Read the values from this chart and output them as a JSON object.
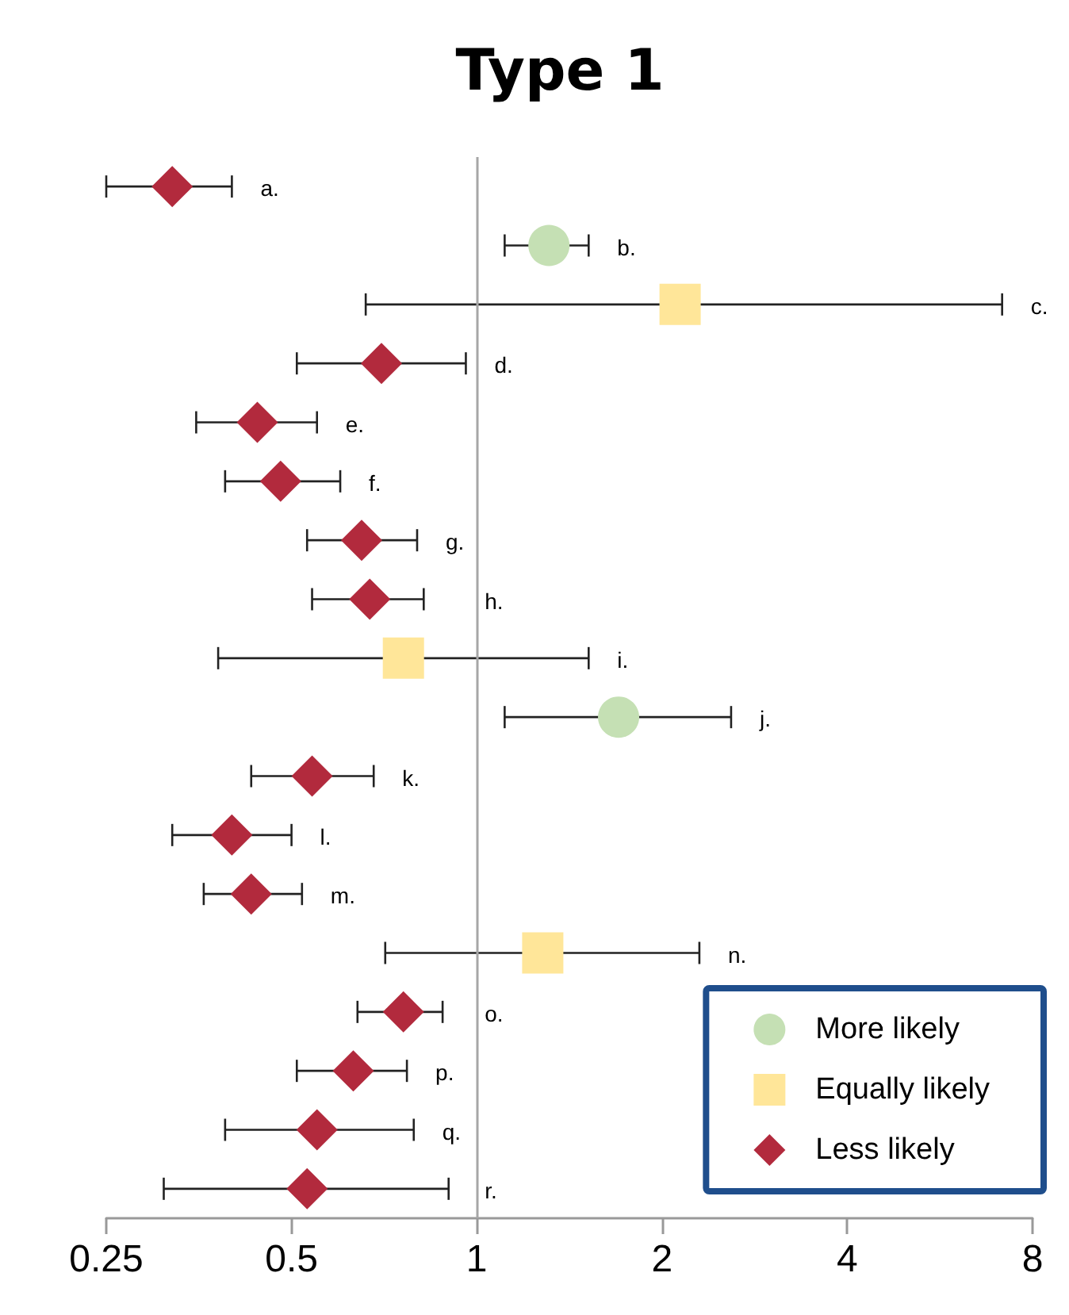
{
  "chart_data": {
    "type": "scatter",
    "title": "Type 1",
    "orientation": "horizontal",
    "categories": [
      null,
      null,
      null,
      null,
      null,
      null,
      null,
      null,
      null,
      null,
      null,
      null,
      null,
      null,
      null,
      null,
      null,
      null
    ],
    "log": "x",
    "xlim": [
      0.25,
      8
    ],
    "xticks": [
      0.25,
      0.5,
      1,
      2,
      4,
      8
    ],
    "grid": false,
    "legend": "bottom right",
    "tick_labels": "x",
    "annotations": [
      "a.",
      "b.",
      "c.",
      "d.",
      "e.",
      "f.",
      "g.",
      "h.",
      "i.",
      "j.",
      "k.",
      "l.",
      "m.",
      "n.",
      "o.",
      "p.",
      "q.",
      "r."
    ],
    "ref_lines": [
      {
        "axis": "x",
        "value": 1,
        "color": "#a6a6a6"
      }
    ],
    "series": [
      {
        "name": "More likely",
        "color": "#c5e0b4",
        "marker": "circle",
        "values": [
          null,
          1.31,
          null,
          null,
          null,
          null,
          null,
          null,
          null,
          1.7,
          null,
          null,
          null,
          null,
          null,
          null,
          null,
          null
        ],
        "errors": [
          null,
          [
            1.11,
            1.52
          ],
          null,
          null,
          null,
          null,
          null,
          null,
          null,
          [
            1.11,
            2.59
          ],
          null,
          null,
          null,
          null,
          null,
          null,
          null,
          null
        ]
      },
      {
        "name": "Equally likely",
        "color": "#ffe699",
        "marker": "square",
        "values": [
          null,
          null,
          2.14,
          null,
          null,
          null,
          null,
          null,
          0.76,
          null,
          null,
          null,
          null,
          1.28,
          null,
          null,
          null,
          null
        ],
        "errors": [
          null,
          null,
          [
            0.66,
            7.14
          ],
          null,
          null,
          null,
          null,
          null,
          [
            0.38,
            1.52
          ],
          null,
          null,
          null,
          null,
          [
            0.71,
            2.3
          ],
          null,
          null,
          null,
          null
        ]
      },
      {
        "name": "Less likely",
        "color": "#b22a3d",
        "marker": "diamond",
        "values": [
          0.32,
          null,
          null,
          0.7,
          0.44,
          0.48,
          0.65,
          0.67,
          null,
          null,
          0.54,
          0.4,
          0.43,
          null,
          0.76,
          0.63,
          0.55,
          0.53
        ],
        "errors": [
          [
            0.25,
            0.4
          ],
          null,
          null,
          [
            0.51,
            0.96
          ],
          [
            0.35,
            0.55
          ],
          [
            0.39,
            0.6
          ],
          [
            0.53,
            0.8
          ],
          [
            0.54,
            0.82
          ],
          null,
          null,
          [
            0.43,
            0.68
          ],
          [
            0.32,
            0.5
          ],
          [
            0.36,
            0.52
          ],
          null,
          [
            0.64,
            0.88
          ],
          [
            0.51,
            0.77
          ],
          [
            0.39,
            0.79
          ],
          [
            0.31,
            0.9
          ]
        ]
      }
    ]
  }
}
